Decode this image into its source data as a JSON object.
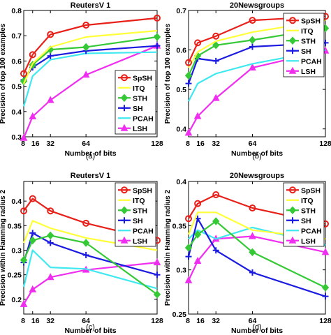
{
  "figure": {
    "colors": {
      "SpSH": "#e8201a",
      "ITQ": "#ffff3a",
      "STH": "#36c936",
      "SH": "#1a1ae0",
      "PCAH": "#40e8f0",
      "LSH": "#f02ef0"
    },
    "markers": {
      "SpSH": "circle",
      "ITQ": "none",
      "STH": "diamond",
      "SH": "plus",
      "PCAH": "none",
      "LSH": "triangle-up"
    }
  },
  "chart_data": [
    {
      "type": "line",
      "panel_label": "(a)",
      "title": "ReutersV 1",
      "xlabel": "Number of bits",
      "ylabel": "Precision of top 100 examples",
      "x": [
        8,
        16,
        32,
        64,
        128
      ],
      "xticks": [
        "8",
        "16",
        "32",
        "64",
        "128"
      ],
      "ylim": [
        0.3,
        0.8
      ],
      "yticks": [
        "0.3",
        "0.4",
        "0.5",
        "0.6",
        "0.7",
        "0.8"
      ],
      "legend_position": "bottom-right",
      "series": [
        {
          "name": "SpSH",
          "values": [
            0.55,
            0.625,
            0.705,
            0.742,
            0.77
          ]
        },
        {
          "name": "ITQ",
          "values": [
            0.51,
            0.59,
            0.655,
            0.695,
            0.72
          ]
        },
        {
          "name": "STH",
          "values": [
            0.52,
            0.585,
            0.645,
            0.655,
            0.695
          ]
        },
        {
          "name": "SH",
          "values": [
            0.525,
            0.575,
            0.62,
            0.64,
            0.66
          ]
        },
        {
          "name": "PCAH",
          "values": [
            0.42,
            0.54,
            0.605,
            0.63,
            0.635
          ]
        },
        {
          "name": "LSH",
          "values": [
            0.295,
            0.38,
            0.445,
            0.545,
            0.66
          ]
        }
      ]
    },
    {
      "type": "line",
      "panel_label": "(b)",
      "title": "20Newsgroups",
      "xlabel": "Number of bits",
      "ylabel": "Precision of top 100 examples",
      "x": [
        8,
        16,
        32,
        64,
        128
      ],
      "xticks": [
        "8",
        "16",
        "32",
        "64",
        "128"
      ],
      "ylim": [
        0.38,
        0.7
      ],
      "yticks": [
        "0.4",
        "0.5",
        "0.6",
        "0.7"
      ],
      "legend_position": "right",
      "series": [
        {
          "name": "SpSH",
          "values": [
            0.568,
            0.618,
            0.635,
            0.675,
            0.685
          ]
        },
        {
          "name": "ITQ",
          "values": [
            0.555,
            0.595,
            0.622,
            0.645,
            0.675
          ]
        },
        {
          "name": "STH",
          "values": [
            0.535,
            0.585,
            0.612,
            0.625,
            0.655
          ]
        },
        {
          "name": "SH",
          "values": [
            0.515,
            0.578,
            0.572,
            0.608,
            0.618
          ]
        },
        {
          "name": "PCAH",
          "values": [
            0.47,
            0.515,
            0.54,
            0.565,
            0.6
          ]
        },
        {
          "name": "LSH",
          "values": [
            0.39,
            0.432,
            0.478,
            0.555,
            0.598
          ]
        }
      ]
    },
    {
      "type": "line",
      "panel_label": "(c)",
      "title": "ReutersV 1",
      "xlabel": "Number of bits",
      "ylabel": "Precision within Hamming radius 2",
      "x": [
        8,
        16,
        32,
        64,
        128
      ],
      "xticks": [
        "8",
        "16",
        "32",
        "64",
        "128"
      ],
      "ylim": [
        0.17,
        0.44
      ],
      "yticks": [
        "0.2",
        "0.25",
        "0.3",
        "0.35",
        "0.4"
      ],
      "legend_position": "top-right",
      "series": [
        {
          "name": "SpSH",
          "values": [
            0.38,
            0.405,
            0.38,
            0.355,
            0.32
          ]
        },
        {
          "name": "ITQ",
          "values": [
            0.315,
            0.36,
            0.345,
            0.325,
            0.3
          ]
        },
        {
          "name": "STH",
          "values": [
            0.28,
            0.32,
            0.33,
            0.315,
            0.21
          ]
        },
        {
          "name": "SH",
          "values": [
            0.275,
            0.335,
            0.315,
            0.29,
            0.25
          ]
        },
        {
          "name": "PCAH",
          "values": [
            0.225,
            0.3,
            0.265,
            0.262,
            0.222
          ]
        },
        {
          "name": "LSH",
          "values": [
            0.19,
            0.22,
            0.245,
            0.26,
            0.275
          ]
        }
      ]
    },
    {
      "type": "line",
      "panel_label": "(d)",
      "title": "20Newsgroups",
      "xlabel": "Number of bits",
      "ylabel": "Precision within Hamming radius 2",
      "x": [
        8,
        16,
        32,
        64,
        128
      ],
      "xticks": [
        "8",
        "16",
        "32",
        "64",
        "128"
      ],
      "ylim": [
        0.25,
        0.4
      ],
      "yticks": [
        "0.25",
        "0.3",
        "0.35",
        "0.4"
      ],
      "legend_position": "top-right",
      "series": [
        {
          "name": "SpSH",
          "values": [
            0.358,
            0.375,
            0.385,
            0.37,
            0.352
          ]
        },
        {
          "name": "ITQ",
          "values": [
            0.34,
            0.365,
            0.365,
            0.345,
            0.335
          ]
        },
        {
          "name": "STH",
          "values": [
            0.325,
            0.34,
            0.355,
            0.32,
            0.28
          ]
        },
        {
          "name": "SH",
          "values": [
            0.315,
            0.358,
            0.322,
            0.297,
            0.27
          ]
        },
        {
          "name": "PCAH",
          "values": [
            0.335,
            0.345,
            0.335,
            0.348,
            0.328
          ]
        },
        {
          "name": "LSH",
          "values": [
            0.288,
            0.31,
            0.335,
            0.338,
            0.32
          ]
        }
      ]
    }
  ]
}
